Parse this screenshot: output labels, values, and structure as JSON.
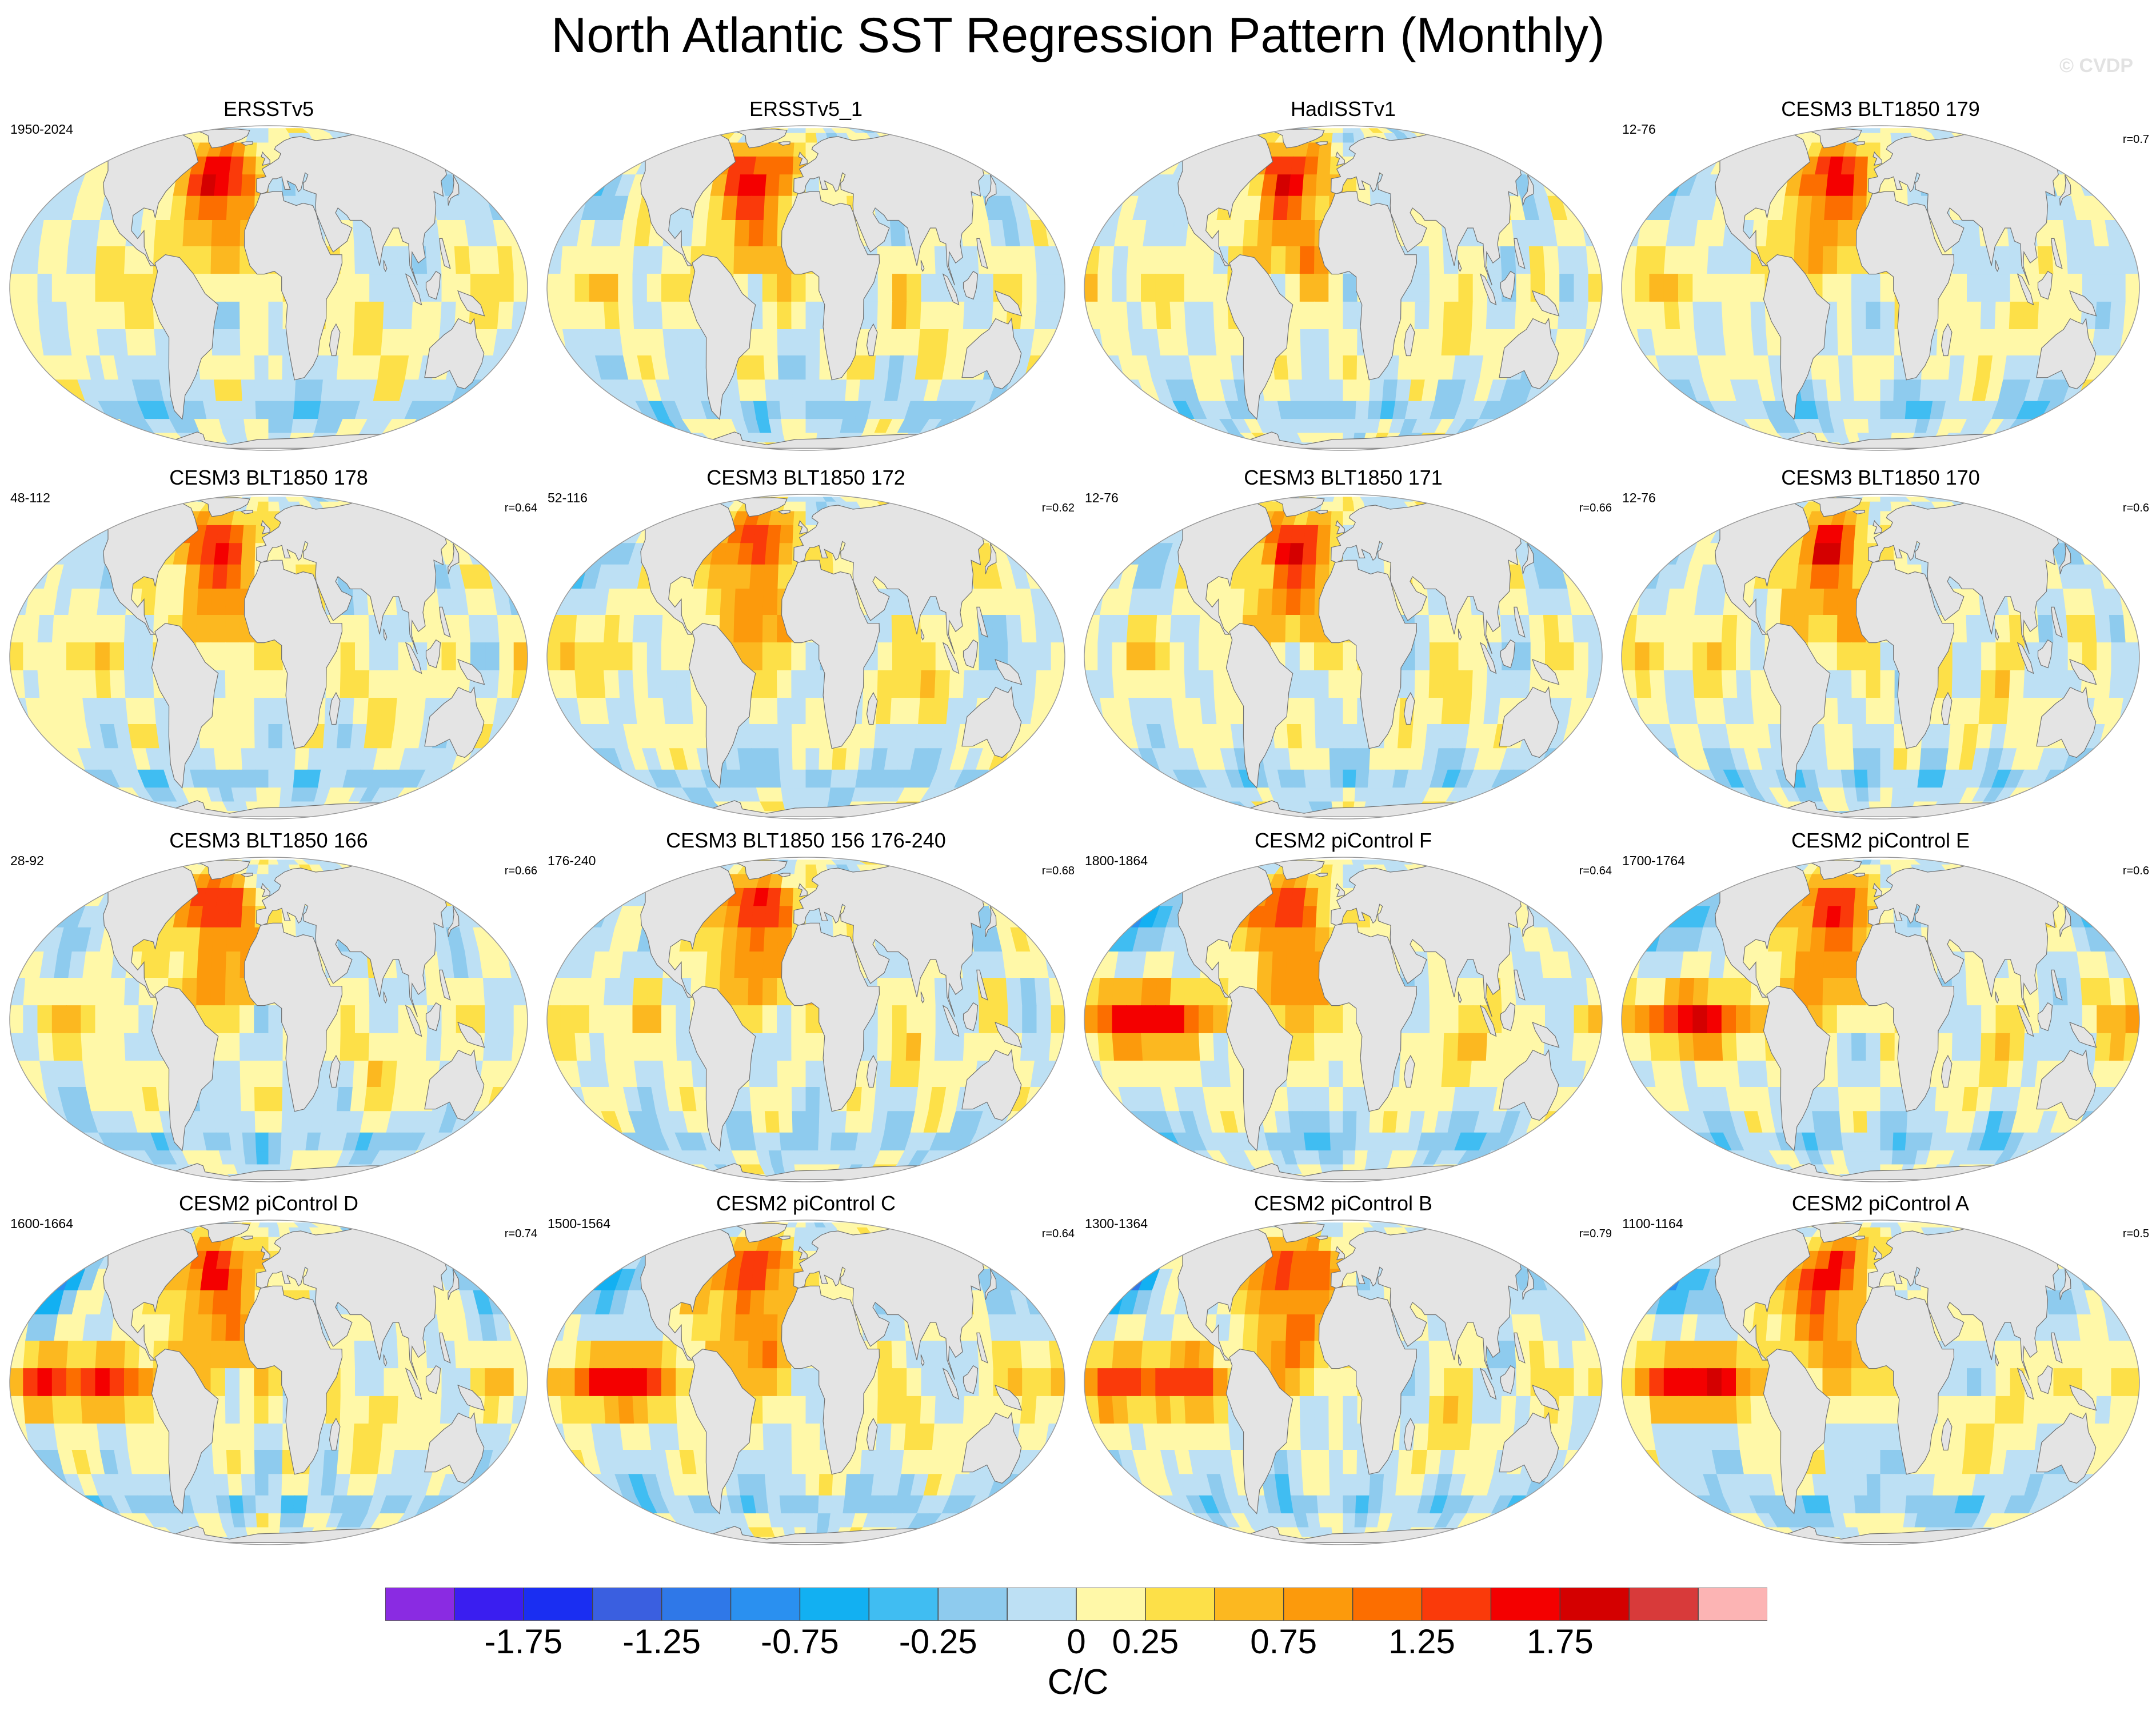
{
  "title": "North Atlantic SST Regression Pattern (Monthly)",
  "watermark": "© CVDP",
  "panels": [
    {
      "title": "ERSSTv5",
      "years": "1950-2024",
      "corr": "",
      "variant": 0
    },
    {
      "title": "ERSSTv5_1",
      "years": "",
      "corr": "",
      "variant": 1
    },
    {
      "title": "HadISSTv1",
      "years": "",
      "corr": "",
      "variant": 2
    },
    {
      "title": "CESM3 BLT1850 179",
      "years": "12-76",
      "corr": "r=0.7",
      "variant": 3
    },
    {
      "title": "CESM3 BLT1850 178",
      "years": "48-112",
      "corr": "r=0.64",
      "variant": 4
    },
    {
      "title": "CESM3 BLT1850 172",
      "years": "52-116",
      "corr": "r=0.62",
      "variant": 5
    },
    {
      "title": "CESM3 BLT1850 171",
      "years": "12-76",
      "corr": "r=0.66",
      "variant": 6
    },
    {
      "title": "CESM3 BLT1850 170",
      "years": "12-76",
      "corr": "r=0.6",
      "variant": 7
    },
    {
      "title": "CESM3 BLT1850 166",
      "years": "28-92",
      "corr": "r=0.66",
      "variant": 8
    },
    {
      "title": "CESM3 BLT1850 156 176-240",
      "years": "176-240",
      "corr": "r=0.68",
      "variant": 9
    },
    {
      "title": "CESM2 piControl F",
      "years": "1800-1864",
      "corr": "r=0.64",
      "variant": 10
    },
    {
      "title": "CESM2 piControl E",
      "years": "1700-1764",
      "corr": "r=0.6",
      "variant": 11
    },
    {
      "title": "CESM2 piControl D",
      "years": "1600-1664",
      "corr": "r=0.74",
      "variant": 12
    },
    {
      "title": "CESM2 piControl C",
      "years": "1500-1564",
      "corr": "r=0.64",
      "variant": 13
    },
    {
      "title": "CESM2 piControl B",
      "years": "1300-1364",
      "corr": "r=0.79",
      "variant": 14
    },
    {
      "title": "CESM2 piControl A",
      "years": "1100-1164",
      "corr": "r=0.5",
      "variant": 15
    }
  ],
  "colorbar": {
    "colors": [
      "#8a2be2",
      "#3a1ef0",
      "#1a2ef2",
      "#3a5fe0",
      "#2f78e8",
      "#2a90f0",
      "#12b0f2",
      "#40bdf2",
      "#8ecbee",
      "#bde0f4",
      "#fff8a8",
      "#fde048",
      "#fcb820",
      "#fc9a0c",
      "#fc6e00",
      "#fa3a0a",
      "#f40000",
      "#d40000",
      "#d83a3a",
      "#fcb4b4"
    ],
    "labels": [
      "-1.75",
      "-1.25",
      "-0.75",
      "-0.25",
      "0",
      "0.25",
      "0.75",
      "1.25",
      "1.75"
    ],
    "label_boundaries": [
      2,
      4,
      6,
      8,
      10,
      11,
      13,
      15,
      17
    ],
    "units": "C/C"
  }
}
